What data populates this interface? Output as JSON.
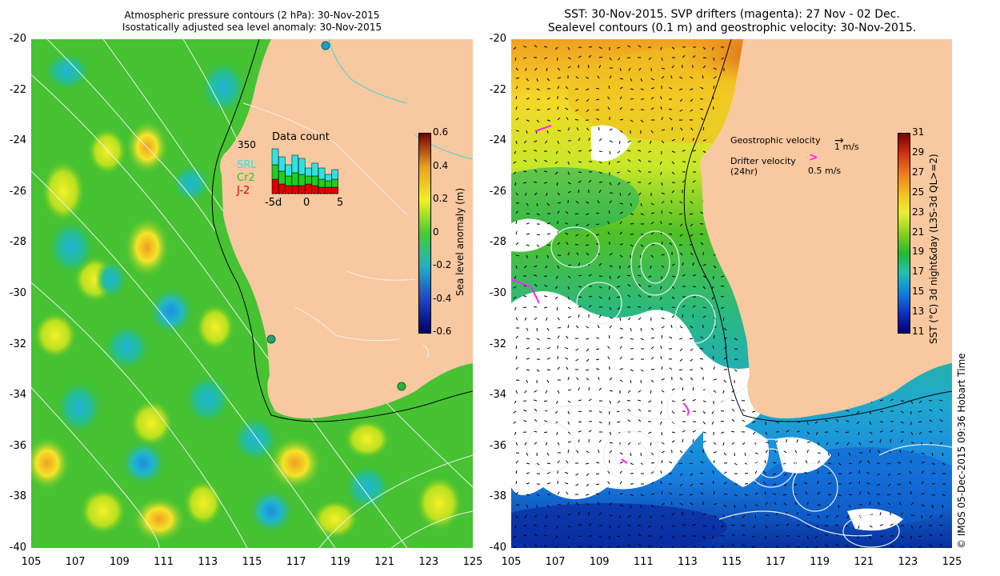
{
  "left_panel": {
    "title_line1": "Atmospheric pressure contours (2 hPa): 30-Nov-2015",
    "title_line2": "Isostatically adjusted sea level anomaly: 30-Nov-2015",
    "data_count": {
      "title": "Data count",
      "max_label": "350",
      "legend": [
        "SRL",
        "Cr2",
        "J-2"
      ],
      "legend_colors": [
        "#33e0e0",
        "#22cc22",
        "#dd0000"
      ],
      "x_ticks": [
        "-5d",
        "0",
        "5"
      ]
    },
    "colorbar": {
      "label": "Sea level anomaly (m)",
      "ticks": [
        "0.6",
        "0.4",
        "0.2",
        "0",
        "-0.2",
        "-0.4",
        "-0.6"
      ],
      "colors": [
        "#7a0000",
        "#e8a020",
        "#f2f020",
        "#44cc33",
        "#22b0c0",
        "#1f44c8",
        "#000066"
      ]
    }
  },
  "right_panel": {
    "title_line1": "SST: 30-Nov-2015. SVP drifters (magenta): 27 Nov - 02 Dec.",
    "title_line2": "Sealevel contours (0.1 m) and geostrophic velocity: 30-Nov-2015.",
    "geostrophic_label": "Geostrophic velocity",
    "geostrophic_scale": "1 m/s",
    "drifter_label": "Drifter velocity",
    "drifter_sub": "(24hr)",
    "drifter_scale": "0.5 m/s",
    "colorbar": {
      "label": "SST (°C) 3d night&day (L3S-3d QL>=2)",
      "ticks": [
        "31",
        "29",
        "27",
        "25",
        "23",
        "21",
        "19",
        "17",
        "15",
        "13",
        "11"
      ],
      "colors": [
        "#7a0000",
        "#d03010",
        "#f07a20",
        "#f4c020",
        "#e8f030",
        "#88d020",
        "#28b830",
        "#20c0b0",
        "#1080e0",
        "#1030c0",
        "#000070"
      ]
    }
  },
  "y_ticks": [
    "-20",
    "-22",
    "-24",
    "-26",
    "-28",
    "-30",
    "-32",
    "-34",
    "-36",
    "-38",
    "-40"
  ],
  "x_ticks": [
    "105",
    "107",
    "109",
    "111",
    "113",
    "115",
    "117",
    "119",
    "121",
    "123",
    "125"
  ],
  "credit": "© IMOS 05-Dec-2015 09:36 Hobart Time",
  "colors": {
    "land": "#f8c8a0",
    "ocean_green": "#3cbf2c",
    "white_cloud": "#ffffff"
  }
}
